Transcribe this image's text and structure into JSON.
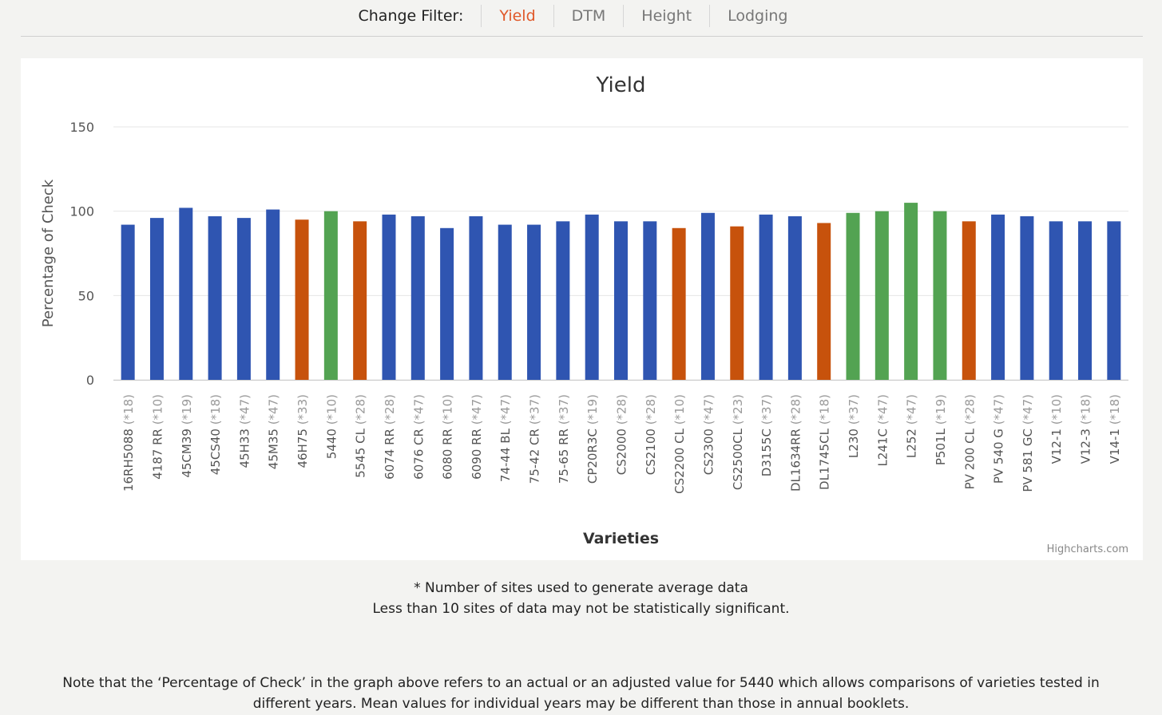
{
  "filter": {
    "label": "Change Filter:",
    "options": [
      "Yield",
      "DTM",
      "Height",
      "Lodging"
    ],
    "active": "Yield",
    "active_color": "#e0592a"
  },
  "chart_data": {
    "type": "bar",
    "title": "Yield",
    "xlabel": "Varieties",
    "ylabel": "Percentage of Check",
    "ylim": [
      0,
      150
    ],
    "yticks": [
      0,
      50,
      100,
      150
    ],
    "grid": true,
    "categories": [
      "16RH5088",
      "4187 RR",
      "45CM39",
      "45CS40",
      "45H33",
      "45M35",
      "46H75",
      "5440",
      "5545 CL",
      "6074 RR",
      "6076 CR",
      "6080 RR",
      "6090 RR",
      "74-44 BL",
      "75-42 CR",
      "75-65 RR",
      "CP20R3C",
      "CS2000",
      "CS2100",
      "CS2200 CL",
      "CS2300",
      "CS2500CL",
      "D3155C",
      "DL1634RR",
      "DL1745CL",
      "L230",
      "L241C",
      "L252",
      "P501L",
      "PV 200 CL",
      "PV 540 G",
      "PV 581 GC",
      "V12-1",
      "V12-3",
      "V14-1"
    ],
    "site_counts": [
      "(*18)",
      "(*10)",
      "(*19)",
      "(*18)",
      "(*47)",
      "(*47)",
      "(*33)",
      "(*10)",
      "(*28)",
      "(*28)",
      "(*47)",
      "(*10)",
      "(*47)",
      "(*47)",
      "(*37)",
      "(*37)",
      "(*19)",
      "(*28)",
      "(*28)",
      "(*10)",
      "(*47)",
      "(*23)",
      "(*37)",
      "(*28)",
      "(*18)",
      "(*37)",
      "(*47)",
      "(*47)",
      "(*19)",
      "(*28)",
      "(*47)",
      "(*47)",
      "(*10)",
      "(*18)",
      "(*18)"
    ],
    "values": [
      92,
      96,
      102,
      97,
      96,
      101,
      95,
      100,
      94,
      98,
      97,
      90,
      97,
      92,
      92,
      94,
      98,
      94,
      94,
      90,
      99,
      91,
      98,
      97,
      93,
      99,
      100,
      105,
      100,
      94,
      98,
      97,
      94,
      94,
      94
    ],
    "bar_colors": [
      "#2f55b1",
      "#2f55b1",
      "#2f55b1",
      "#2f55b1",
      "#2f55b1",
      "#2f55b1",
      "#c7520c",
      "#53a352",
      "#c7520c",
      "#2f55b1",
      "#2f55b1",
      "#2f55b1",
      "#2f55b1",
      "#2f55b1",
      "#2f55b1",
      "#2f55b1",
      "#2f55b1",
      "#2f55b1",
      "#2f55b1",
      "#c7520c",
      "#2f55b1",
      "#c7520c",
      "#2f55b1",
      "#2f55b1",
      "#c7520c",
      "#53a352",
      "#53a352",
      "#53a352",
      "#53a352",
      "#c7520c",
      "#2f55b1",
      "#2f55b1",
      "#2f55b1",
      "#2f55b1",
      "#2f55b1"
    ]
  },
  "credits": "Highcharts.com",
  "notes": {
    "line1": "* Number of sites used to generate average data",
    "line2": "Less than 10 sites of data may not be statistically significant."
  },
  "footnote": "Note that the ‘Percentage of Check’ in the graph above refers to an actual or an adjusted value for 5440 which allows comparisons of varieties tested in different years. Mean values for individual years may be different than those in annual booklets."
}
